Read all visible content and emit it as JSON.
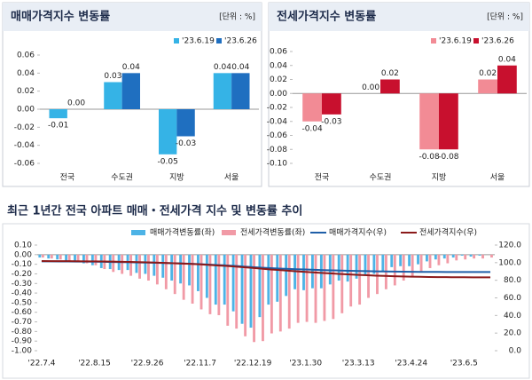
{
  "chart_data": [
    {
      "type": "bar",
      "title": "매매가격지수 변동률",
      "unit": "[단위 : %]",
      "categories": [
        "전국",
        "수도권",
        "지방",
        "서울"
      ],
      "series": [
        {
          "name": "'23.6.19",
          "color": "#35b3e6",
          "values": [
            -0.01,
            0.03,
            -0.05,
            0.04
          ],
          "value_labels": [
            "-0.01",
            "0.03",
            "-0.05",
            "0.04"
          ]
        },
        {
          "name": "'23.6.26",
          "color": "#1f6fc0",
          "values": [
            0,
            0.04,
            -0.03,
            0.04
          ],
          "value_labels": [
            "0.00",
            "0.04",
            "-0.03",
            "0.04"
          ]
        }
      ],
      "ylim": [
        -0.06,
        0.06
      ],
      "yticks": [
        -0.06,
        -0.04,
        -0.02,
        {
          "value": 0,
          "label": "0.00"
        },
        0.02,
        0.04,
        0.06
      ],
      "grid": false
    },
    {
      "type": "bar",
      "title": "전세가격지수 변동률",
      "unit": "[단위 : %]",
      "categories": [
        "전국",
        "수도권",
        "지방",
        "서울"
      ],
      "series": [
        {
          "name": "'23.6.19",
          "color": "#f28b95",
          "values": [
            -0.04,
            0,
            -0.08,
            0.02
          ],
          "value_labels": [
            "-0.04",
            "0.00",
            "-0.08",
            "0.02"
          ]
        },
        {
          "name": "'23.6.26",
          "color": "#c8102e",
          "values": [
            -0.03,
            0.02,
            -0.08,
            0.04
          ],
          "value_labels": [
            "-0.03",
            "0.02",
            "-0.08",
            "0.04"
          ]
        }
      ],
      "ylim": [
        -0.1,
        0.06
      ],
      "yticks": [
        {
          "value": -0.1,
          "label": "-0.10"
        },
        -0.08,
        -0.06,
        -0.04,
        -0.02,
        {
          "value": 0,
          "label": "0.00"
        },
        0.02,
        0.04,
        0.06
      ],
      "grid": false
    },
    {
      "type": "combo",
      "title": "최근 1년간 전국 아파트 매매・전세가격 지수 및 변동률 추이",
      "categories": [
        "'22.7.4",
        null,
        null,
        null,
        null,
        null,
        "'22.8.15",
        null,
        null,
        null,
        null,
        null,
        "'22.9.26",
        null,
        null,
        null,
        null,
        null,
        "'22.11.7",
        null,
        null,
        null,
        null,
        null,
        "'22.12.19",
        null,
        null,
        null,
        null,
        null,
        "'23.1.30",
        null,
        null,
        null,
        null,
        null,
        "'23.3.13",
        null,
        null,
        null,
        null,
        null,
        "'23.4.24",
        null,
        null,
        null,
        null,
        null,
        "'23.6.5",
        null,
        null,
        null
      ],
      "series": [
        {
          "name": "매매가격변동률(좌)",
          "type": "bar",
          "color": "#4db3e6",
          "values": [
            -0.03,
            -0.04,
            -0.05,
            -0.07,
            -0.08,
            -0.09,
            -0.11,
            -0.14,
            -0.15,
            -0.16,
            -0.16,
            -0.19,
            -0.2,
            -0.22,
            -0.24,
            -0.27,
            -0.3,
            -0.32,
            -0.38,
            -0.45,
            -0.52,
            -0.52,
            -0.59,
            -0.72,
            -0.76,
            -0.65,
            -0.52,
            -0.49,
            -0.43,
            -0.36,
            -0.37,
            -0.35,
            -0.35,
            -0.31,
            -0.27,
            -0.28,
            -0.25,
            -0.22,
            -0.2,
            -0.17,
            -0.13,
            -0.12,
            -0.12,
            -0.1,
            -0.07,
            -0.05,
            -0.04,
            -0.03,
            -0.01,
            -0.02,
            -0.01,
            0
          ]
        },
        {
          "name": "전세가격변동률(좌)",
          "type": "bar",
          "color": "#f19aa6",
          "values": [
            -0.03,
            -0.04,
            -0.05,
            -0.07,
            -0.08,
            -0.09,
            -0.11,
            -0.15,
            -0.18,
            -0.2,
            -0.22,
            -0.25,
            -0.27,
            -0.31,
            -0.36,
            -0.41,
            -0.47,
            -0.51,
            -0.57,
            -0.62,
            -0.63,
            -0.74,
            -0.77,
            -0.85,
            -0.91,
            -0.9,
            -0.82,
            -0.8,
            -0.77,
            -0.71,
            -0.7,
            -0.71,
            -0.69,
            -0.67,
            -0.61,
            -0.54,
            -0.52,
            -0.45,
            -0.41,
            -0.36,
            -0.32,
            -0.27,
            -0.23,
            -0.18,
            -0.14,
            -0.11,
            -0.09,
            -0.06,
            -0.05,
            -0.04,
            -0.04,
            -0.03
          ]
        },
        {
          "name": "매매가격지수(우)",
          "type": "line",
          "axis": "y2",
          "color": "#1f5fa8",
          "values": [
            101.5,
            101.46,
            101.41,
            101.34,
            101.26,
            101.17,
            101.06,
            100.92,
            100.77,
            100.61,
            100.45,
            100.26,
            100.06,
            99.84,
            99.6,
            99.33,
            99.03,
            98.71,
            98.33,
            97.88,
            97.37,
            96.86,
            96.29,
            95.6,
            94.87,
            94.25,
            93.76,
            93.3,
            92.9,
            92.56,
            92.22,
            91.89,
            91.56,
            91.27,
            91.02,
            90.76,
            90.53,
            90.33,
            90.14,
            89.98,
            89.86,
            89.75,
            89.64,
            89.55,
            89.49,
            89.44,
            89.4,
            89.37,
            89.36,
            89.34,
            89.33,
            89.33
          ]
        },
        {
          "name": "전세가격지수(우)",
          "type": "line",
          "axis": "y2",
          "color": "#8b1a1a",
          "values": [
            101.8,
            101.77,
            101.73,
            101.68,
            101.61,
            101.53,
            101.44,
            101.33,
            101.18,
            101,
            100.8,
            100.58,
            100.33,
            100.06,
            99.75,
            99.39,
            98.99,
            98.52,
            98.02,
            97.46,
            96.86,
            96.25,
            95.54,
            94.81,
            94,
            93.15,
            92.32,
            91.57,
            90.84,
            90.15,
            89.51,
            88.89,
            88.27,
            87.67,
            87.09,
            86.57,
            86.1,
            85.66,
            85.27,
            84.92,
            84.61,
            84.33,
            84.09,
            83.9,
            83.75,
            83.63,
            83.53,
            83.46,
            83.41,
            83.37,
            83.33,
            83.3
          ]
        }
      ],
      "ylim": [
        -1,
        0.1
      ],
      "yticks": [
        {
          "value": -1,
          "label": "-1.00"
        },
        {
          "value": -0.9,
          "label": "-0.90"
        },
        {
          "value": -0.8,
          "label": "-0.80"
        },
        {
          "value": -0.7,
          "label": "-0.70"
        },
        {
          "value": -0.6,
          "label": "-0.60"
        },
        {
          "value": -0.5,
          "label": "-0.50"
        },
        {
          "value": -0.4,
          "label": "-0.40"
        },
        {
          "value": -0.3,
          "label": "-0.30"
        },
        {
          "value": -0.2,
          "label": "-0.20"
        },
        {
          "value": -0.1,
          "label": "-0.10"
        },
        {
          "value": 0,
          "label": "0.00"
        },
        {
          "value": 0.1,
          "label": "0.10"
        }
      ],
      "y2lim": [
        0,
        120
      ],
      "y2ticks": [
        {
          "value": 0,
          "label": "0.0"
        },
        {
          "value": 20,
          "label": "20.0"
        },
        {
          "value": 40,
          "label": "40.0"
        },
        {
          "value": 60,
          "label": "60.0"
        },
        {
          "value": 80,
          "label": "80.0"
        },
        {
          "value": 100,
          "label": "100.0"
        },
        {
          "value": 120,
          "label": "120.0"
        }
      ],
      "grid": false
    }
  ]
}
